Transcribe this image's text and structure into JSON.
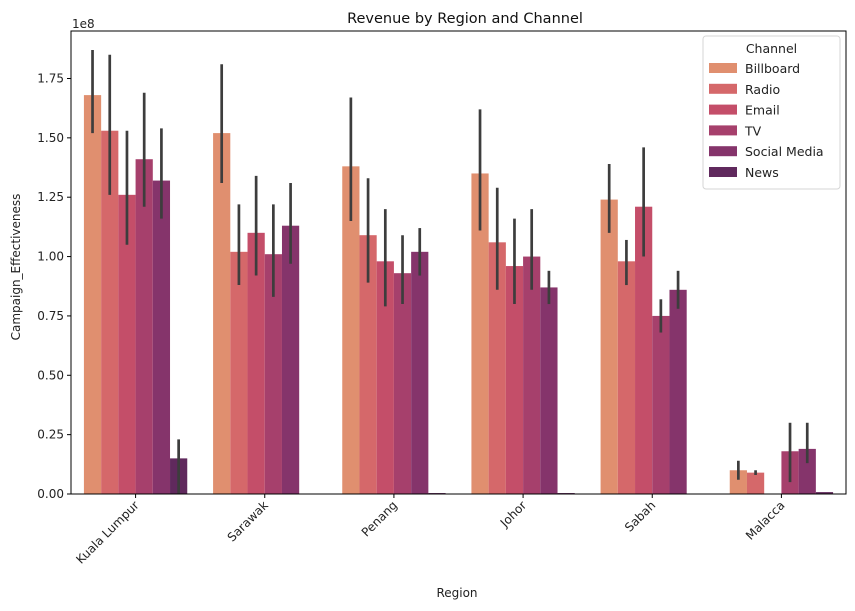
{
  "chart_data": {
    "type": "bar",
    "title": "Revenue by Region and Channel",
    "xlabel": "Region",
    "ylabel": "Campaign_Effectiveness",
    "y_offset_text": "1e8",
    "ylim": [
      0,
      1.95
    ],
    "y_ticks": [
      "0.00",
      "0.25",
      "0.50",
      "0.75",
      "1.00",
      "1.25",
      "1.50",
      "1.75"
    ],
    "categories": [
      "Kuala Lumpur",
      "Sarawak",
      "Penang",
      "Johor",
      "Sabah",
      "Malacca"
    ],
    "legend": {
      "title": "Channel",
      "position": "upper right"
    },
    "grid": false,
    "series": [
      {
        "name": "Billboard",
        "color": "#e08f6f",
        "values": [
          1.68,
          1.52,
          1.38,
          1.35,
          1.24,
          0.1
        ],
        "err_low": [
          1.52,
          1.31,
          1.15,
          1.11,
          1.1,
          0.06
        ],
        "err_high": [
          1.87,
          1.81,
          1.67,
          1.62,
          1.39,
          0.14
        ]
      },
      {
        "name": "Radio",
        "color": "#d5686a",
        "values": [
          1.53,
          1.02,
          1.09,
          1.06,
          0.98,
          0.09
        ],
        "err_low": [
          1.26,
          0.88,
          0.89,
          0.86,
          0.88,
          0.08
        ],
        "err_high": [
          1.85,
          1.22,
          1.33,
          1.29,
          1.07,
          0.1
        ]
      },
      {
        "name": "Email",
        "color": "#c44e69",
        "values": [
          1.26,
          1.1,
          0.98,
          0.96,
          1.21,
          0.0
        ],
        "err_low": [
          1.05,
          0.92,
          0.79,
          0.8,
          1.0,
          0.0
        ],
        "err_high": [
          1.53,
          1.34,
          1.2,
          1.16,
          1.46,
          0.0
        ]
      },
      {
        "name": "TV",
        "color": "#a6406c",
        "values": [
          1.41,
          1.01,
          0.93,
          1.0,
          0.75,
          0.18
        ],
        "err_low": [
          1.21,
          0.83,
          0.8,
          0.86,
          0.68,
          0.05
        ],
        "err_high": [
          1.69,
          1.22,
          1.09,
          1.2,
          0.82,
          0.3
        ]
      },
      {
        "name": "Social Media",
        "color": "#85346b",
        "values": [
          1.32,
          1.13,
          1.02,
          0.87,
          0.86,
          0.19
        ],
        "err_low": [
          1.16,
          0.97,
          0.92,
          0.8,
          0.78,
          0.13
        ],
        "err_high": [
          1.54,
          1.31,
          1.12,
          0.94,
          0.94,
          0.3
        ]
      },
      {
        "name": "News",
        "color": "#60295d",
        "values": [
          0.15,
          null,
          0.004,
          0.004,
          null,
          0.008
        ],
        "err_low": [
          0.0,
          null,
          null,
          null,
          null,
          null
        ],
        "err_high": [
          0.23,
          null,
          null,
          null,
          null,
          null
        ]
      }
    ]
  }
}
